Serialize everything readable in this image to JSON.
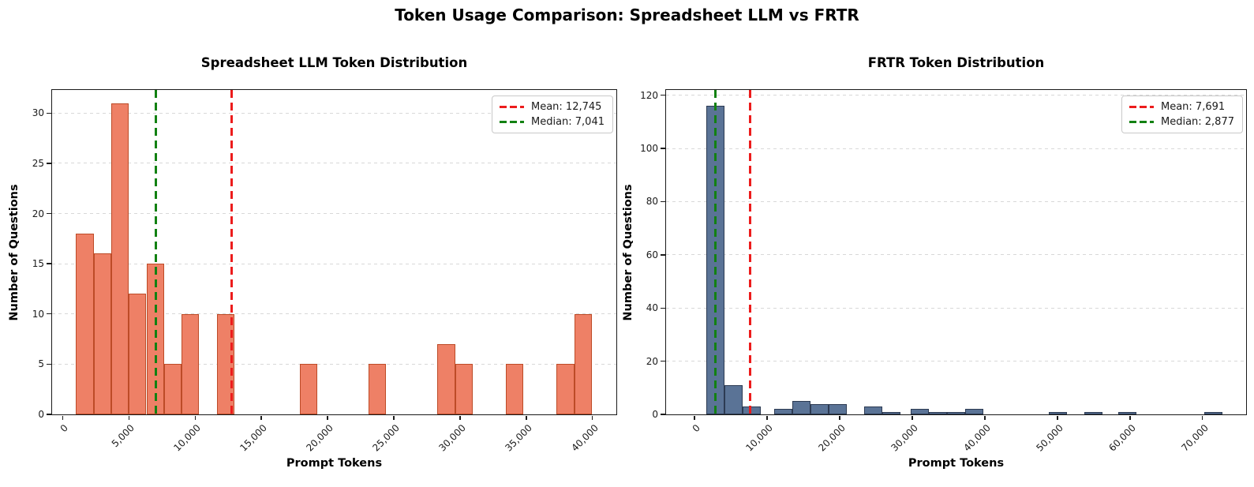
{
  "figure_title": "Token Usage Comparison: Spreadsheet LLM vs FRTR",
  "chart_data": [
    {
      "type": "bar",
      "title": "Spreadsheet LLM Token Distribution",
      "xlabel": "Prompt Tokens",
      "ylabel": "Number of Questions",
      "mean": 12745,
      "median": 7041,
      "legend": {
        "mean": "Mean: 12,745",
        "median": "Median: 7,041"
      },
      "legend_position": "upper-right",
      "grid": "horizontal-dashed",
      "bin_width": 1330,
      "bars_start_count": [
        [
          1000,
          18
        ],
        [
          2330,
          16
        ],
        [
          3660,
          31
        ],
        [
          4990,
          12
        ],
        [
          6320,
          15
        ],
        [
          7650,
          5
        ],
        [
          8980,
          10
        ],
        [
          11640,
          10
        ],
        [
          17900,
          5
        ],
        [
          23100,
          5
        ],
        [
          28300,
          7
        ],
        [
          29630,
          5
        ],
        [
          33450,
          5
        ],
        [
          37300,
          5
        ],
        [
          38630,
          10
        ]
      ],
      "xlim": [
        -800,
        41800
      ],
      "ylim": [
        0,
        32.3
      ],
      "xticks": [
        [
          0,
          "0"
        ],
        [
          5000,
          "5,000"
        ],
        [
          10000,
          "10,000"
        ],
        [
          15000,
          "15,000"
        ],
        [
          20000,
          "20,000"
        ],
        [
          25000,
          "25,000"
        ],
        [
          30000,
          "30,000"
        ],
        [
          35000,
          "35,000"
        ],
        [
          40000,
          "40,000"
        ]
      ],
      "yticks": [
        0,
        5,
        10,
        15,
        20,
        25,
        30
      ],
      "colors": {
        "bar_fill": "#ee8066",
        "bar_edge": "#bd4b27",
        "mean_line": "#ec1c1c",
        "median_line": "#128112"
      }
    },
    {
      "type": "bar",
      "title": "FRTR Token Distribution",
      "xlabel": "Prompt Tokens",
      "ylabel": "Number of Questions",
      "mean": 7691,
      "median": 2877,
      "legend": {
        "mean": "Mean: 7,691",
        "median": "Median: 2,877"
      },
      "legend_position": "upper-right",
      "grid": "horizontal-dashed",
      "bin_width": 2500,
      "bars_start_count": [
        [
          1600,
          116
        ],
        [
          4100,
          11
        ],
        [
          6600,
          3
        ],
        [
          11000,
          2
        ],
        [
          13500,
          5
        ],
        [
          16000,
          4
        ],
        [
          18500,
          4
        ],
        [
          23400,
          3
        ],
        [
          25900,
          1
        ],
        [
          29800,
          2
        ],
        [
          32300,
          1
        ],
        [
          34800,
          1
        ],
        [
          37300,
          2
        ],
        [
          48800,
          1
        ],
        [
          53700,
          1
        ],
        [
          58400,
          1
        ],
        [
          70200,
          1
        ]
      ],
      "xlim": [
        -3900,
        76000
      ],
      "ylim": [
        0,
        122
      ],
      "xticks": [
        [
          0,
          "0"
        ],
        [
          10000,
          "10,000"
        ],
        [
          20000,
          "20,000"
        ],
        [
          30000,
          "30,000"
        ],
        [
          40000,
          "40,000"
        ],
        [
          50000,
          "50,000"
        ],
        [
          60000,
          "60,000"
        ],
        [
          70000,
          "70,000"
        ]
      ],
      "yticks": [
        0,
        20,
        40,
        60,
        80,
        100,
        120
      ],
      "colors": {
        "bar_fill": "#5a7396",
        "bar_edge": "#2c3a52",
        "mean_line": "#ec1c1c",
        "median_line": "#128112"
      }
    }
  ],
  "grid_color": "#d8d8d8"
}
